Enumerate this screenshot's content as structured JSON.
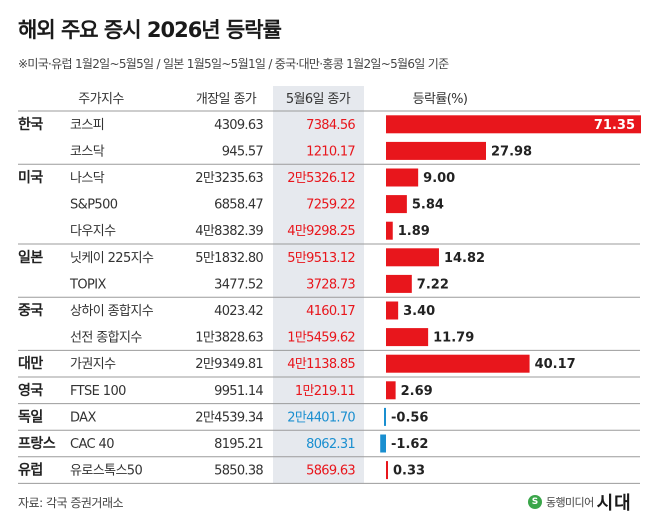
{
  "title": "해외 주요 증시 2026년 등락률",
  "note": "※미국·유럽 1월2일~5월5일 / 일본 1월5일~5월1일 / 중국·대만·홍콩 1월2일~5월6일 기준",
  "source": "자료: 각국 증권거래소",
  "logo": {
    "mark": "S",
    "prefix": "동행미디어",
    "main": "시대"
  },
  "colors": {
    "positive": "#e8161c",
    "negative": "#1a8fd0",
    "highlight_column": "#e6e9ee",
    "divider": "#9b9b9b"
  },
  "chart_data": {
    "type": "table",
    "headers": [
      "주가지수",
      "개장일 종가",
      "5월6일 종가",
      "등락률(%)"
    ],
    "rows": [
      {
        "country": "한국",
        "index": "코스피",
        "open": "4309.63",
        "close": "7384.56",
        "change": 71.35,
        "change_label": "71.35"
      },
      {
        "country": "",
        "index": "코스닥",
        "open": "945.57",
        "close": "1210.17",
        "change": 27.98,
        "change_label": "27.98"
      },
      {
        "country": "미국",
        "index": "나스닥",
        "open": "2만3235.63",
        "close": "2만5326.12",
        "change": 9.0,
        "change_label": "9.00"
      },
      {
        "country": "",
        "index": "S&P500",
        "open": "6858.47",
        "close": "7259.22",
        "change": 5.84,
        "change_label": "5.84"
      },
      {
        "country": "",
        "index": "다우지수",
        "open": "4만8382.39",
        "close": "4만9298.25",
        "change": 1.89,
        "change_label": "1.89"
      },
      {
        "country": "일본",
        "index": "닛케이 225지수",
        "open": "5만1832.80",
        "close": "5만9513.12",
        "change": 14.82,
        "change_label": "14.82"
      },
      {
        "country": "",
        "index": "TOPIX",
        "open": "3477.52",
        "close": "3728.73",
        "change": 7.22,
        "change_label": "7.22"
      },
      {
        "country": "중국",
        "index": "상하이 종합지수",
        "open": "4023.42",
        "close": "4160.17",
        "change": 3.4,
        "change_label": "3.40"
      },
      {
        "country": "",
        "index": "선전 종합지수",
        "open": "1만3828.63",
        "close": "1만5459.62",
        "change": 11.79,
        "change_label": "11.79"
      },
      {
        "country": "대만",
        "index": "가권지수",
        "open": "2만9349.81",
        "close": "4만1138.85",
        "change": 40.17,
        "change_label": "40.17"
      },
      {
        "country": "영국",
        "index": "FTSE 100",
        "open": "9951.14",
        "close": "1만219.11",
        "change": 2.69,
        "change_label": "2.69"
      },
      {
        "country": "독일",
        "index": "DAX",
        "open": "2만4539.34",
        "close": "2만4401.70",
        "change": -0.56,
        "change_label": "-0.56"
      },
      {
        "country": "프랑스",
        "index": "CAC 40",
        "open": "8195.21",
        "close": "8062.31",
        "change": -1.62,
        "change_label": "-1.62"
      },
      {
        "country": "유럽",
        "index": "유로스톡스50",
        "open": "5850.38",
        "close": "5869.63",
        "change": 0.33,
        "change_label": "0.33"
      }
    ]
  }
}
